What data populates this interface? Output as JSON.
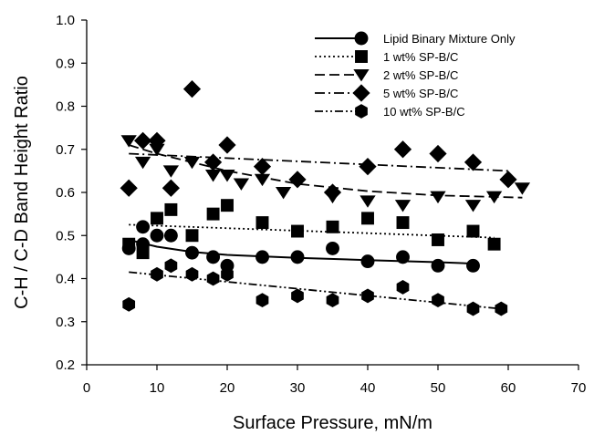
{
  "chart_data": {
    "type": "scatter",
    "xlabel": "Surface Pressure, mN/m",
    "ylabel": "C-H / C-D Band Height Ratio",
    "xlim": [
      0,
      70
    ],
    "ylim": [
      0.2,
      1.0
    ],
    "x_ticks": [
      "0",
      "10",
      "20",
      "30",
      "40",
      "50",
      "60",
      "70"
    ],
    "y_ticks": [
      "0.2",
      "0.3",
      "0.4",
      "0.5",
      "0.6",
      "0.7",
      "0.8",
      "0.9",
      "1.0"
    ],
    "grid": false,
    "legend_position": "top-right",
    "series": [
      {
        "name": "Lipid Binary Mixture Only",
        "marker": "circle",
        "line_style": "solid",
        "points": [
          [
            6,
            0.47
          ],
          [
            8,
            0.48
          ],
          [
            8,
            0.52
          ],
          [
            10,
            0.5
          ],
          [
            12,
            0.5
          ],
          [
            15,
            0.46
          ],
          [
            18,
            0.45
          ],
          [
            20,
            0.43
          ],
          [
            25,
            0.45
          ],
          [
            30,
            0.45
          ],
          [
            35,
            0.47
          ],
          [
            40,
            0.44
          ],
          [
            45,
            0.45
          ],
          [
            50,
            0.43
          ],
          [
            55,
            0.43
          ]
        ],
        "trend": [
          [
            6,
            0.49
          ],
          [
            8,
            0.482
          ],
          [
            10,
            0.474
          ],
          [
            15,
            0.462
          ],
          [
            20,
            0.455
          ],
          [
            30,
            0.448
          ],
          [
            40,
            0.443
          ],
          [
            50,
            0.438
          ],
          [
            55,
            0.435
          ]
        ]
      },
      {
        "name": "1 wt% SP-B/C",
        "marker": "square",
        "line_style": "dotted",
        "points": [
          [
            6,
            0.48
          ],
          [
            8,
            0.46
          ],
          [
            10,
            0.54
          ],
          [
            12,
            0.56
          ],
          [
            15,
            0.5
          ],
          [
            18,
            0.55
          ],
          [
            20,
            0.57
          ],
          [
            25,
            0.53
          ],
          [
            30,
            0.51
          ],
          [
            35,
            0.52
          ],
          [
            40,
            0.54
          ],
          [
            45,
            0.53
          ],
          [
            50,
            0.49
          ],
          [
            55,
            0.51
          ],
          [
            58,
            0.48
          ]
        ],
        "trend": [
          [
            6,
            0.525
          ],
          [
            58,
            0.495
          ]
        ]
      },
      {
        "name": "2 wt% SP-B/C",
        "marker": "triangle-down",
        "line_style": "dashed",
        "points": [
          [
            6,
            0.72
          ],
          [
            8,
            0.67
          ],
          [
            10,
            0.7
          ],
          [
            12,
            0.65
          ],
          [
            15,
            0.67
          ],
          [
            18,
            0.64
          ],
          [
            20,
            0.64
          ],
          [
            22,
            0.62
          ],
          [
            25,
            0.63
          ],
          [
            28,
            0.6
          ],
          [
            35,
            0.59
          ],
          [
            40,
            0.58
          ],
          [
            45,
            0.57
          ],
          [
            50,
            0.59
          ],
          [
            55,
            0.57
          ],
          [
            58,
            0.59
          ],
          [
            62,
            0.61
          ]
        ],
        "trend": [
          [
            6,
            0.71
          ],
          [
            10,
            0.69
          ],
          [
            20,
            0.65
          ],
          [
            30,
            0.62
          ],
          [
            40,
            0.603
          ],
          [
            50,
            0.593
          ],
          [
            62,
            0.588
          ]
        ]
      },
      {
        "name": "5 wt% SP-B/C",
        "marker": "diamond",
        "line_style": "dash-dot",
        "points": [
          [
            6,
            0.61
          ],
          [
            8,
            0.72
          ],
          [
            10,
            0.72
          ],
          [
            12,
            0.61
          ],
          [
            15,
            0.84
          ],
          [
            18,
            0.67
          ],
          [
            20,
            0.71
          ],
          [
            25,
            0.66
          ],
          [
            30,
            0.63
          ],
          [
            35,
            0.6
          ],
          [
            40,
            0.66
          ],
          [
            45,
            0.7
          ],
          [
            50,
            0.69
          ],
          [
            55,
            0.67
          ],
          [
            60,
            0.63
          ]
        ],
        "trend": [
          [
            6,
            0.69
          ],
          [
            60,
            0.65
          ]
        ]
      },
      {
        "name": "10 wt% SP-B/C",
        "marker": "hexagon",
        "line_style": "dash-dot-dot",
        "points": [
          [
            6,
            0.34
          ],
          [
            10,
            0.41
          ],
          [
            12,
            0.43
          ],
          [
            15,
            0.41
          ],
          [
            18,
            0.4
          ],
          [
            20,
            0.41
          ],
          [
            25,
            0.35
          ],
          [
            30,
            0.36
          ],
          [
            35,
            0.35
          ],
          [
            40,
            0.36
          ],
          [
            45,
            0.38
          ],
          [
            50,
            0.35
          ],
          [
            55,
            0.33
          ],
          [
            59,
            0.33
          ]
        ],
        "trend": [
          [
            6,
            0.415
          ],
          [
            59,
            0.33
          ]
        ]
      }
    ]
  }
}
